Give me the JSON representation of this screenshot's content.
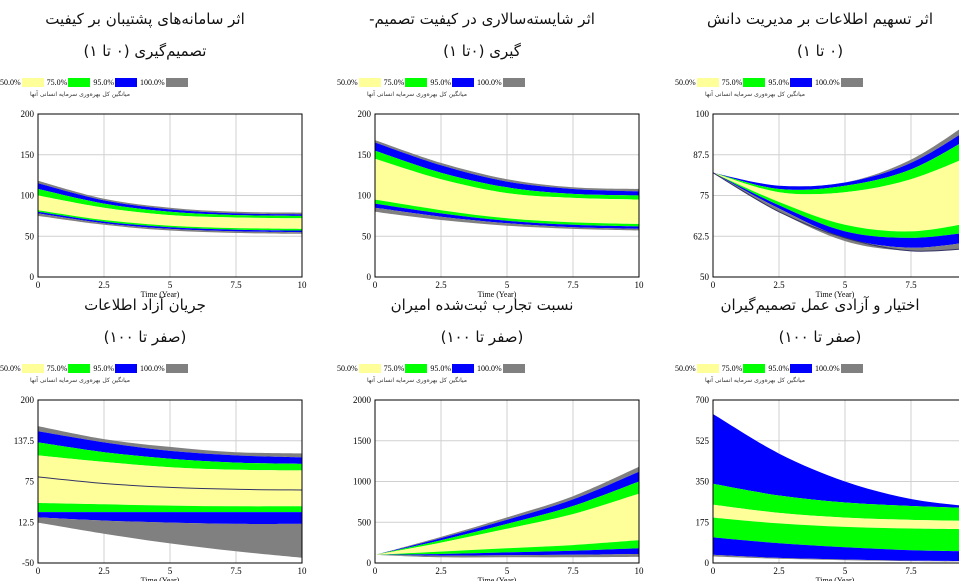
{
  "legend": {
    "items": [
      {
        "label": "50.0%",
        "color": "#ffff99"
      },
      {
        "label": "75.0%",
        "color": "#00ff00"
      },
      {
        "label": "95.0%",
        "color": "#0000ff"
      },
      {
        "label": "100.0%",
        "color": "#808080"
      }
    ],
    "variable_label": "میانگین کل بهره‌وری سرمایه انسانی آنها"
  },
  "chart_data": [
    {
      "type": "area",
      "title_line1": "اثر تسهیم اطلاعات بر مدیریت دانش",
      "title_line2": "(۰ تا ۱)",
      "xlabel": "Time (Year)",
      "xlim": [
        0,
        10
      ],
      "ylim": [
        50,
        100
      ],
      "xticks": [
        0,
        2.5,
        5,
        7.5,
        10
      ],
      "yticks": [
        50,
        62.5,
        75,
        87.5,
        100
      ],
      "ytick_labels": [
        "50",
        "62.5",
        "75",
        "87.5",
        "100"
      ],
      "x": [
        0,
        2.5,
        5,
        7.5,
        10
      ],
      "bands": {
        "p100_upper": [
          82,
          78,
          79,
          86,
          99
        ],
        "p95_upper": [
          82,
          78,
          79,
          85,
          97
        ],
        "p75_upper": [
          82,
          77,
          78,
          83,
          94
        ],
        "p50_upper": [
          82,
          76,
          76,
          80,
          88
        ],
        "p50_lower": [
          82,
          73,
          66,
          64,
          67
        ],
        "p75_lower": [
          82,
          72,
          64,
          62,
          64
        ],
        "p95_lower": [
          82,
          71,
          62,
          59,
          61
        ],
        "p100_lower": [
          82,
          70,
          61,
          58,
          59
        ]
      },
      "mean": [
        82,
        70,
        62,
        58,
        59
      ]
    },
    {
      "type": "area",
      "title_line1": "اثر شایسته‌سالاری در کیفیت تصمیم-",
      "title_line2": "گیری (۰تا ۱)",
      "xlabel": "Time (Year)",
      "xlim": [
        0,
        10
      ],
      "ylim": [
        0,
        200
      ],
      "xticks": [
        0,
        2.5,
        5,
        7.5,
        10
      ],
      "yticks": [
        0,
        50,
        100,
        150,
        200
      ],
      "ytick_labels": [
        "0",
        "50",
        "100",
        "150",
        "200"
      ],
      "x": [
        0,
        2.5,
        5,
        7.5,
        10
      ],
      "bands": {
        "p100_upper": [
          168,
          140,
          120,
          110,
          108
        ],
        "p95_upper": [
          165,
          137,
          117,
          108,
          105
        ],
        "p75_upper": [
          155,
          128,
          110,
          102,
          100
        ],
        "p50_upper": [
          145,
          120,
          103,
          97,
          95
        ],
        "p50_lower": [
          95,
          82,
          72,
          67,
          65
        ],
        "p75_lower": [
          90,
          78,
          69,
          64,
          62
        ],
        "p95_lower": [
          85,
          74,
          66,
          61,
          59
        ],
        "p100_lower": [
          80,
          70,
          63,
          59,
          57
        ]
      }
    },
    {
      "type": "area",
      "title_line1": "اثر سامانه‌های پشتیبان بر کیفیت",
      "title_line2": "تصمیم‌گیری (۰ تا ۱)",
      "xlabel": "Time (Year)",
      "xlim": [
        0,
        10
      ],
      "ylim": [
        0,
        200
      ],
      "xticks": [
        0,
        2.5,
        5,
        7.5,
        10
      ],
      "yticks": [
        0,
        50,
        100,
        150,
        200
      ],
      "ytick_labels": [
        "0",
        "50",
        "100",
        "150",
        "200"
      ],
      "x": [
        0,
        2.5,
        5,
        7.5,
        10
      ],
      "bands": {
        "p100_upper": [
          118,
          96,
          85,
          80,
          79
        ],
        "p95_upper": [
          115,
          94,
          83,
          78,
          77
        ],
        "p75_upper": [
          108,
          90,
          80,
          76,
          75
        ],
        "p50_upper": [
          100,
          85,
          76,
          73,
          72
        ],
        "p50_lower": [
          82,
          70,
          63,
          60,
          59
        ],
        "p75_lower": [
          80,
          68,
          61,
          58,
          57
        ],
        "p95_lower": [
          78,
          66,
          59,
          56,
          55
        ],
        "p100_lower": [
          75,
          64,
          57,
          54,
          53
        ]
      }
    },
    {
      "type": "area",
      "title_line1": "جریان آزاد اطلاعات",
      "title_line2": "(صفر تا ۱۰۰)",
      "xlabel": "Time (Year)",
      "xlim": [
        0,
        10
      ],
      "ylim": [
        -50,
        200
      ],
      "xticks": [
        0,
        2.5,
        5,
        7.5,
        10
      ],
      "yticks": [
        -50,
        12.5,
        75,
        137.5,
        200
      ],
      "ytick_labels": [
        "-50",
        "12.5",
        "75",
        "137.5",
        "200"
      ],
      "x": [
        0,
        2.5,
        5,
        7.5,
        10
      ],
      "bands": {
        "p100_upper": [
          160,
          140,
          128,
          120,
          118
        ],
        "p95_upper": [
          152,
          135,
          122,
          115,
          112
        ],
        "p75_upper": [
          135,
          120,
          110,
          104,
          102
        ],
        "p50_upper": [
          115,
          105,
          97,
          93,
          92
        ],
        "p50_lower": [
          42,
          40,
          38,
          37,
          37
        ],
        "p75_lower": [
          28,
          28,
          28,
          28,
          28
        ],
        "p95_lower": [
          20,
          15,
          12,
          10,
          10
        ],
        "p100_lower": [
          12,
          -5,
          -20,
          -32,
          -42
        ]
      },
      "mean": [
        82,
        72,
        66,
        63,
        62
      ]
    },
    {
      "type": "area",
      "title_line1": "نسبت تجارب ثبت‌شده امیران",
      "title_line2": "(صفر تا ۱۰۰)",
      "xlabel": "Time (Year)",
      "xlim": [
        0,
        10
      ],
      "ylim": [
        0,
        2000
      ],
      "xticks": [
        0,
        2.5,
        5,
        7.5,
        10
      ],
      "yticks": [
        0,
        500,
        1000,
        1500,
        2000
      ],
      "ytick_labels": [
        "0",
        "500",
        "1000",
        "1500",
        "2000"
      ],
      "x": [
        0,
        2.5,
        5,
        7.5,
        10
      ],
      "bands": {
        "p100_upper": [
          100,
          320,
          560,
          820,
          1180
        ],
        "p95_upper": [
          100,
          305,
          530,
          780,
          1120
        ],
        "p75_upper": [
          100,
          280,
          480,
          700,
          1000
        ],
        "p50_upper": [
          100,
          250,
          420,
          600,
          850
        ],
        "p50_lower": [
          100,
          140,
          180,
          220,
          280
        ],
        "p75_lower": [
          100,
          110,
          130,
          150,
          180
        ],
        "p95_lower": [
          100,
          90,
          95,
          100,
          110
        ],
        "p100_lower": [
          100,
          70,
          70,
          70,
          75
        ]
      }
    },
    {
      "type": "area",
      "title_line1": "اختیار و آزادی عمل تصمیم‌گیران",
      "title_line2": "(صفر تا ۱۰۰)",
      "xlabel": "Time (Year)",
      "xlim": [
        0,
        10
      ],
      "ylim": [
        0,
        700
      ],
      "xticks": [
        0,
        2.5,
        5,
        7.5,
        10
      ],
      "yticks": [
        0,
        175,
        350,
        525,
        700
      ],
      "ytick_labels": [
        "0",
        "175",
        "350",
        "525",
        "700"
      ],
      "x": [
        0,
        2.5,
        5,
        7.5,
        10
      ],
      "bands": {
        "p100_upper": [
          640,
          470,
          350,
          275,
          240
        ],
        "p95_upper": [
          640,
          470,
          350,
          275,
          240
        ],
        "p75_upper": [
          340,
          290,
          260,
          245,
          235
        ],
        "p50_upper": [
          250,
          215,
          195,
          185,
          180
        ],
        "p50_lower": [
          195,
          170,
          155,
          148,
          145
        ],
        "p75_lower": [
          110,
          85,
          68,
          55,
          50
        ],
        "p95_lower": [
          35,
          22,
          15,
          10,
          8
        ],
        "p100_lower": [
          28,
          18,
          12,
          8,
          6
        ]
      }
    }
  ]
}
